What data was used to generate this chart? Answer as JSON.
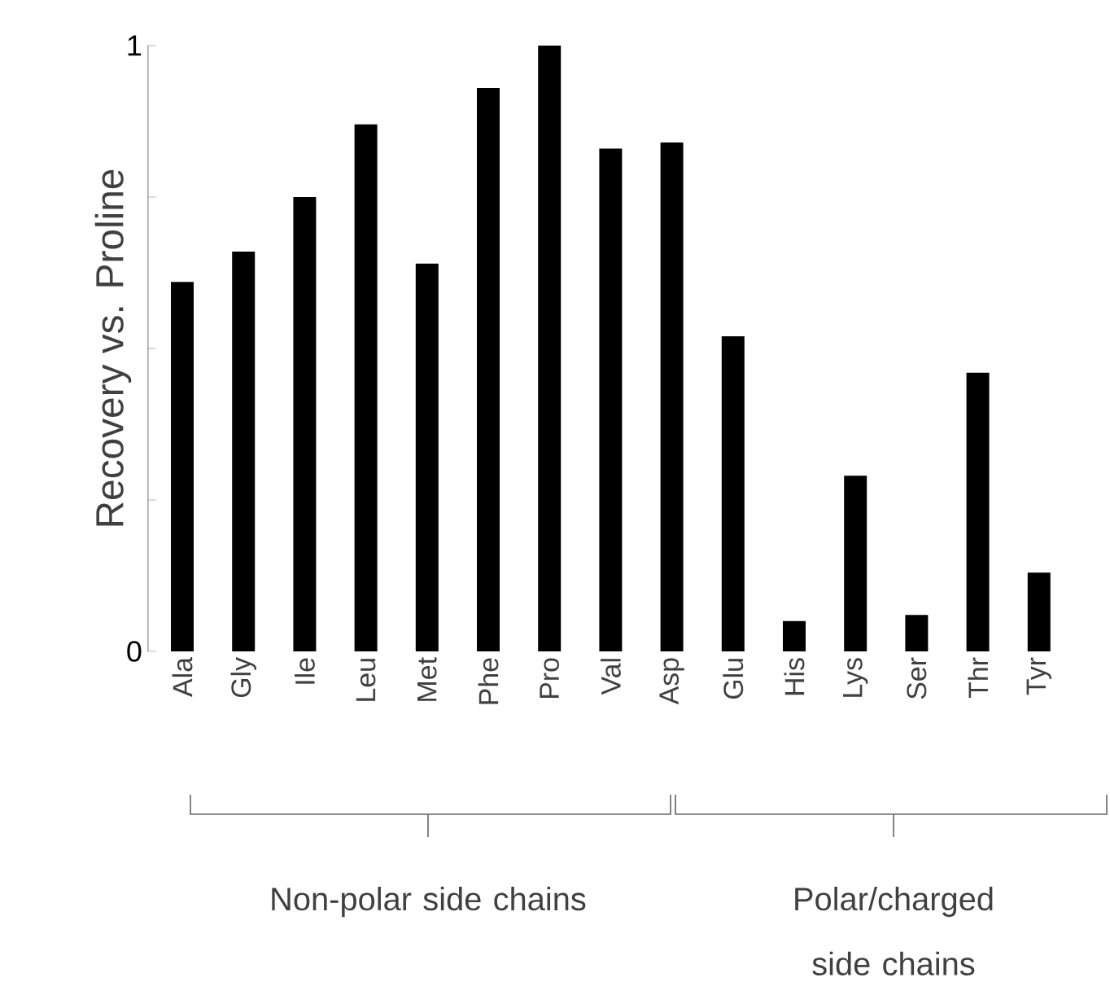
{
  "chart_data": {
    "type": "bar",
    "ylabel": "Recovery vs. Proline",
    "categories": [
      "Ala",
      "Gly",
      "Ile",
      "Leu",
      "Met",
      "Phe",
      "Pro",
      "Val",
      "Asp",
      "Glu",
      "His",
      "Lys",
      "Ser",
      "Thr",
      "Tyr"
    ],
    "values": [
      0.61,
      0.66,
      0.75,
      0.87,
      0.64,
      0.93,
      1.0,
      0.83,
      0.84,
      0.52,
      0.05,
      0.29,
      0.06,
      0.46,
      0.13
    ],
    "color": "#000000",
    "ylim": [
      0,
      1
    ],
    "yticks": [
      0,
      {
        "value": 0.25,
        "label": null
      },
      {
        "value": 0.5,
        "label": null
      },
      {
        "value": 0.75,
        "label": null
      },
      1
    ],
    "annotations": [
      "Non-polar side chains",
      "Polar/charged side chains"
    ]
  }
}
